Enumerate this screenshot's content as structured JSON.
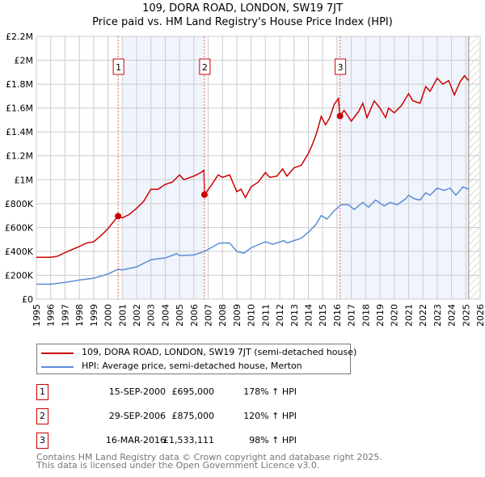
{
  "chart_data": {
    "type": "line",
    "title": "109, DORA ROAD, LONDON, SW19 7JT",
    "subtitle": "Price paid vs. HM Land Registry's House Price Index (HPI)",
    "xlim": [
      1995,
      2026
    ],
    "ylim": [
      0,
      2200000
    ],
    "x_ticks": [
      "1995",
      "1996",
      "1997",
      "1998",
      "1999",
      "2000",
      "2001",
      "2002",
      "2003",
      "2004",
      "2005",
      "2006",
      "2007",
      "2008",
      "2009",
      "2010",
      "2011",
      "2012",
      "2013",
      "2014",
      "2015",
      "2016",
      "2017",
      "2018",
      "2019",
      "2020",
      "2021",
      "2022",
      "2023",
      "2024",
      "2025",
      "2026"
    ],
    "y_ticks": [
      {
        "v": 0,
        "l": "£0"
      },
      {
        "v": 200000,
        "l": "£200K"
      },
      {
        "v": 400000,
        "l": "£400K"
      },
      {
        "v": 600000,
        "l": "£600K"
      },
      {
        "v": 800000,
        "l": "£800K"
      },
      {
        "v": 1000000,
        "l": "£1M"
      },
      {
        "v": 1200000,
        "l": "£1.2M"
      },
      {
        "v": 1400000,
        "l": "£1.4M"
      },
      {
        "v": 1600000,
        "l": "£1.6M"
      },
      {
        "v": 1800000,
        "l": "£1.8M"
      },
      {
        "v": 2000000,
        "l": "£2M"
      },
      {
        "v": 2200000,
        "l": "£2.2M"
      }
    ],
    "grid": true,
    "shaded_ranges": [
      [
        2001,
        2006.75
      ],
      [
        2016.2,
        2025.2
      ]
    ],
    "future_hatch_from": 2025.2,
    "series": [
      {
        "name": "109, DORA ROAD, LONDON, SW19 7JT (semi-detached house)",
        "color": "#cc0000",
        "points": [
          [
            1995,
            350
          ],
          [
            1996,
            350
          ],
          [
            1996.5,
            360
          ],
          [
            1997,
            390
          ],
          [
            1998,
            440
          ],
          [
            1998.5,
            470
          ],
          [
            1999,
            480
          ],
          [
            1999.5,
            530
          ],
          [
            2000,
            590
          ],
          [
            2000.7,
            695
          ],
          [
            2001,
            680
          ],
          [
            2001.5,
            710
          ],
          [
            2002,
            760
          ],
          [
            2002.5,
            820
          ],
          [
            2003,
            920
          ],
          [
            2003.5,
            920
          ],
          [
            2004,
            960
          ],
          [
            2004.5,
            980
          ],
          [
            2005,
            1040
          ],
          [
            2005.3,
            1000
          ],
          [
            2006,
            1030
          ],
          [
            2006.5,
            1060
          ],
          [
            2006.7,
            1080
          ],
          [
            2006.75,
            875
          ],
          [
            2007.2,
            950
          ],
          [
            2007.7,
            1040
          ],
          [
            2008,
            1020
          ],
          [
            2008.5,
            1040
          ],
          [
            2009,
            900
          ],
          [
            2009.3,
            920
          ],
          [
            2009.6,
            850
          ],
          [
            2010,
            940
          ],
          [
            2010.5,
            980
          ],
          [
            2011,
            1060
          ],
          [
            2011.3,
            1020
          ],
          [
            2011.8,
            1030
          ],
          [
            2012.2,
            1090
          ],
          [
            2012.5,
            1030
          ],
          [
            2013,
            1100
          ],
          [
            2013.5,
            1120
          ],
          [
            2013.8,
            1180
          ],
          [
            2014,
            1220
          ],
          [
            2014.3,
            1300
          ],
          [
            2014.6,
            1400
          ],
          [
            2014.9,
            1530
          ],
          [
            2015.2,
            1460
          ],
          [
            2015.5,
            1520
          ],
          [
            2015.8,
            1630
          ],
          [
            2016.1,
            1680
          ],
          [
            2016.2,
            1533
          ],
          [
            2016.5,
            1580
          ],
          [
            2017,
            1490
          ],
          [
            2017.5,
            1570
          ],
          [
            2017.8,
            1640
          ],
          [
            2018.1,
            1520
          ],
          [
            2018.6,
            1660
          ],
          [
            2019,
            1600
          ],
          [
            2019.4,
            1520
          ],
          [
            2019.6,
            1600
          ],
          [
            2020,
            1560
          ],
          [
            2020.5,
            1620
          ],
          [
            2021,
            1720
          ],
          [
            2021.3,
            1660
          ],
          [
            2021.8,
            1640
          ],
          [
            2022.2,
            1780
          ],
          [
            2022.5,
            1740
          ],
          [
            2023,
            1850
          ],
          [
            2023.4,
            1800
          ],
          [
            2023.8,
            1830
          ],
          [
            2024.2,
            1710
          ],
          [
            2024.6,
            1820
          ],
          [
            2024.9,
            1870
          ],
          [
            2025.2,
            1830
          ]
        ]
      },
      {
        "name": "HPI: Average price, semi-detached house, Merton",
        "color": "#5b8dd6",
        "points": [
          [
            1995,
            125
          ],
          [
            1996,
            125
          ],
          [
            1997,
            140
          ],
          [
            1998,
            160
          ],
          [
            1999,
            175
          ],
          [
            2000,
            210
          ],
          [
            2000.7,
            250
          ],
          [
            2001,
            245
          ],
          [
            2002,
            270
          ],
          [
            2003,
            330
          ],
          [
            2004,
            345
          ],
          [
            2004.8,
            380
          ],
          [
            2005,
            365
          ],
          [
            2006,
            370
          ],
          [
            2006.75,
            400
          ],
          [
            2007.5,
            450
          ],
          [
            2007.8,
            470
          ],
          [
            2008.5,
            470
          ],
          [
            2009,
            400
          ],
          [
            2009.5,
            385
          ],
          [
            2010,
            430
          ],
          [
            2011,
            480
          ],
          [
            2011.5,
            460
          ],
          [
            2012.3,
            490
          ],
          [
            2012.5,
            470
          ],
          [
            2013,
            490
          ],
          [
            2013.5,
            510
          ],
          [
            2014,
            560
          ],
          [
            2014.5,
            620
          ],
          [
            2014.9,
            700
          ],
          [
            2015.3,
            670
          ],
          [
            2015.8,
            740
          ],
          [
            2016.3,
            790
          ],
          [
            2016.8,
            790
          ],
          [
            2017.2,
            750
          ],
          [
            2017.8,
            810
          ],
          [
            2018.2,
            770
          ],
          [
            2018.7,
            830
          ],
          [
            2019.3,
            780
          ],
          [
            2019.7,
            810
          ],
          [
            2020.2,
            790
          ],
          [
            2020.8,
            840
          ],
          [
            2021,
            870
          ],
          [
            2021.4,
            840
          ],
          [
            2021.8,
            830
          ],
          [
            2022.2,
            890
          ],
          [
            2022.5,
            870
          ],
          [
            2023,
            930
          ],
          [
            2023.5,
            910
          ],
          [
            2023.9,
            930
          ],
          [
            2024.3,
            870
          ],
          [
            2024.8,
            940
          ],
          [
            2025.2,
            920
          ]
        ]
      }
    ],
    "point_units": "thousands GBP",
    "sales": [
      {
        "id": "1",
        "x": 2000.71,
        "y": 695000,
        "date": "15-SEP-2000",
        "price": "£695,000",
        "hpi": "178% ↑ HPI"
      },
      {
        "id": "2",
        "x": 2006.74,
        "y": 875000,
        "date": "29-SEP-2006",
        "price": "£875,000",
        "hpi": "120% ↑ HPI"
      },
      {
        "id": "3",
        "x": 2016.21,
        "y": 1533111,
        "date": "16-MAR-2016",
        "price": "£1,533,111",
        "hpi": "98% ↑ HPI"
      }
    ]
  },
  "footer": {
    "line1": "Contains HM Land Registry data © Crown copyright and database right 2025.",
    "line2": "This data is licensed under the Open Government Licence v3.0."
  }
}
